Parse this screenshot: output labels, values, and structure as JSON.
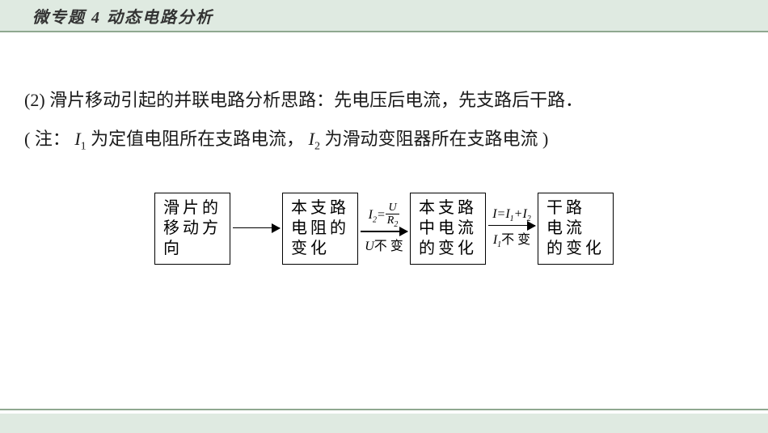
{
  "header": {
    "title": "微专题 4  动态电路分析",
    "background": "#dfeae1",
    "border_color": "#8fa890"
  },
  "body": {
    "line1_prefix": "(2) 滑片移动引起的并联电路分析思路：先电压后电流，先支路后干路．",
    "line2_open": "( 注：",
    "line2_i1": "I",
    "line2_sub1": "1",
    "line2_mid1": " 为定值电阻所在支路电流，",
    "line2_i2": "I",
    "line2_sub2": "2",
    "line2_mid2": " 为滑动变阻器所在支路电流 )",
    "text_color": "#1a1a1a",
    "font_size": 22
  },
  "flowchart": {
    "type": "flowchart",
    "background": "#ffffff",
    "border_color": "#000000",
    "font_size": 20,
    "letter_spacing": 4,
    "nodes": [
      {
        "id": "n1",
        "text": "滑片的\n移动方\n向"
      },
      {
        "id": "n2",
        "text": "本支路\n电阻的\n变化"
      },
      {
        "id": "n3",
        "text": "本支路\n中电流\n的变化"
      },
      {
        "id": "n4",
        "text": "干路\n电流\n的变化"
      }
    ],
    "edges": [
      {
        "from": "n1",
        "to": "n2",
        "top": "",
        "bottom": ""
      },
      {
        "from": "n2",
        "to": "n3",
        "top_eq_left": "I",
        "top_eq_left_sub": "2",
        "top_eq_eq": "=",
        "top_frac_num": "U",
        "top_frac_den_i": "R",
        "top_frac_den_sub": "2",
        "bottom_i": "U",
        "bottom_cn": "不 变"
      },
      {
        "from": "n3",
        "to": "n4",
        "top_plain": "I=I",
        "top_sub1": "1",
        "top_plus": "+I",
        "top_sub2": "2",
        "bottom_i": "I",
        "bottom_sub": "1",
        "bottom_cn": "不 变"
      }
    ]
  },
  "footer": {
    "line_color": "#8fa890",
    "band_color": "#dfeae1"
  }
}
